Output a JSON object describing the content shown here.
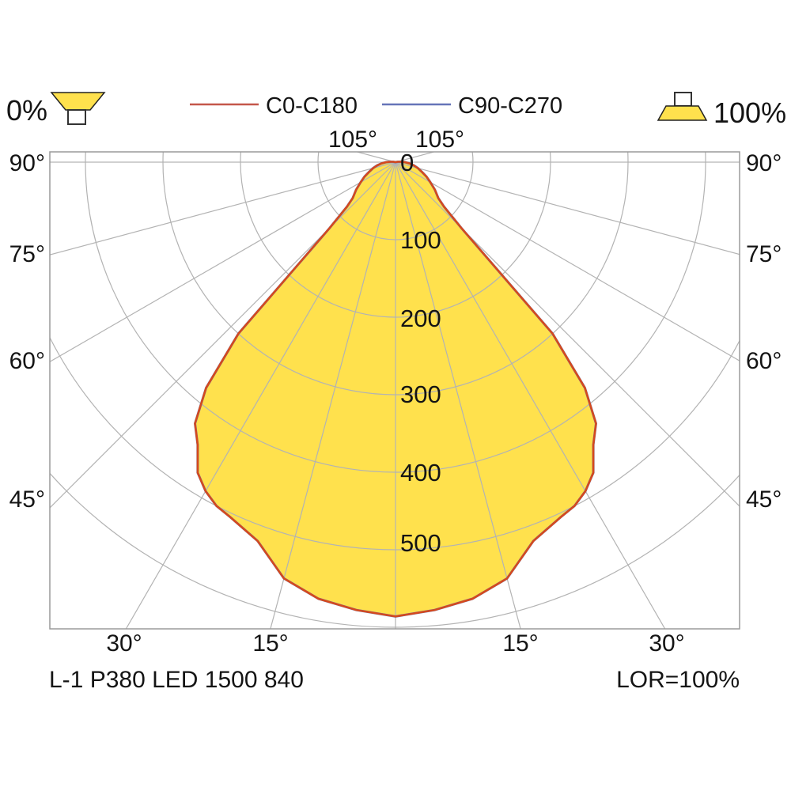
{
  "header": {
    "upward_light_label": "0%",
    "downward_light_label": "100%",
    "legend": {
      "items": [
        {
          "label": "C0-C180",
          "color": "#c4574a"
        },
        {
          "label": "C90-C270",
          "color": "#6674b8"
        }
      ]
    }
  },
  "polar_chart": {
    "top_angle_labels": [
      "105°",
      "105°"
    ],
    "left_angle_labels": [
      "90°",
      "75°",
      "60°",
      "45°"
    ],
    "right_angle_labels": [
      "90°",
      "75°",
      "60°",
      "45°"
    ],
    "bottom_angle_labels": [
      "30°",
      "15°",
      "15°",
      "30°"
    ],
    "radial_tick_labels": [
      "0",
      "100",
      "200",
      "300",
      "400",
      "500"
    ]
  },
  "footer": {
    "luminaire_label": "L-1 P380 LED 1500 840",
    "lor_label": "LOR=100%"
  },
  "chart_data": {
    "type": "line",
    "subtype": "photometric-polar-intensity-diagram",
    "title": "",
    "legend_position": "top",
    "grid": true,
    "grid_color": "#b3b3b3",
    "frame_color": "#9a9a9a",
    "angle_axis": {
      "unit": "deg",
      "zero_direction": "down (nadir)",
      "gridline_step_deg": 15,
      "labeled_angles_deg": [
        15,
        30,
        45,
        60,
        75,
        90,
        105
      ],
      "angle_range_deg": [
        -105,
        105
      ]
    },
    "radial_axis": {
      "ticks": [
        0,
        100,
        200,
        300,
        400,
        500
      ],
      "gridline_step": 100,
      "max_gridline": 600
    },
    "series": [
      {
        "name": "C0-C180",
        "color": "#d6491c",
        "fill": "#ffe14d",
        "symmetric_mirror": true,
        "angles_deg": [
          0,
          5,
          10,
          15,
          20,
          25,
          27.5,
          30,
          32.5,
          35,
          37.5,
          40,
          42.5,
          45,
          47.5,
          50,
          55,
          60,
          65,
          70,
          75,
          80,
          85,
          90,
          95,
          100,
          105
        ],
        "intensities": [
          586,
          580,
          572,
          556,
          520,
          505,
          500,
          490,
          475,
          445,
          425,
          380,
          300,
          120,
          85,
          72,
          62,
          52,
          44,
          36,
          30,
          24,
          18,
          12,
          6,
          3,
          0
        ]
      },
      {
        "name": "C90-C270",
        "color": "#6674b8",
        "symmetric_mirror": true,
        "coincides_with": "C0-C180",
        "angles_deg": [
          0,
          5,
          10,
          15,
          20,
          25,
          27.5,
          30,
          32.5,
          35,
          37.5,
          40,
          42.5,
          45,
          47.5,
          50,
          55,
          60,
          65,
          70,
          75,
          80,
          85,
          90,
          95,
          100,
          105
        ],
        "intensities": [
          586,
          580,
          572,
          556,
          520,
          505,
          500,
          490,
          475,
          445,
          425,
          380,
          300,
          120,
          85,
          72,
          62,
          52,
          44,
          36,
          30,
          24,
          18,
          12,
          6,
          3,
          0
        ]
      }
    ]
  }
}
